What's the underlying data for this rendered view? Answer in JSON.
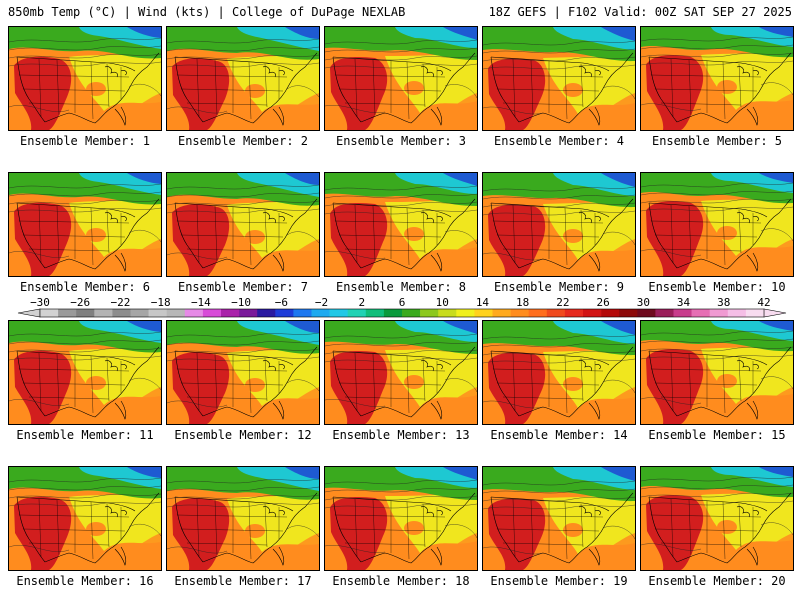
{
  "header": {
    "title": "850mb Temp (°C) | Wind (kts) | College of DuPage NEXLAB",
    "run_info": "18Z GEFS | F102 Valid: 00Z SAT SEP 27 2025"
  },
  "panel_label_prefix": "Ensemble Member: ",
  "members": [
    {
      "id": 1,
      "label": "Ensemble Member: 1"
    },
    {
      "id": 2,
      "label": "Ensemble Member: 2"
    },
    {
      "id": 3,
      "label": "Ensemble Member: 3"
    },
    {
      "id": 4,
      "label": "Ensemble Member: 4"
    },
    {
      "id": 5,
      "label": "Ensemble Member: 5"
    },
    {
      "id": 6,
      "label": "Ensemble Member: 6"
    },
    {
      "id": 7,
      "label": "Ensemble Member: 7"
    },
    {
      "id": 8,
      "label": "Ensemble Member: 8"
    },
    {
      "id": 9,
      "label": "Ensemble Member: 9"
    },
    {
      "id": 10,
      "label": "Ensemble Member: 10"
    },
    {
      "id": 11,
      "label": "Ensemble Member: 11"
    },
    {
      "id": 12,
      "label": "Ensemble Member: 12"
    },
    {
      "id": 13,
      "label": "Ensemble Member: 13"
    },
    {
      "id": 14,
      "label": "Ensemble Member: 14"
    },
    {
      "id": 15,
      "label": "Ensemble Member: 15"
    },
    {
      "id": 16,
      "label": "Ensemble Member: 16"
    },
    {
      "id": 17,
      "label": "Ensemble Member: 17"
    },
    {
      "id": 18,
      "label": "Ensemble Member: 18"
    },
    {
      "id": 19,
      "label": "Ensemble Member: 19"
    },
    {
      "id": 20,
      "label": "Ensemble Member: 20"
    }
  ],
  "colorbar": {
    "unit": "°C",
    "tick_labels": [
      "-30",
      "-26",
      "-22",
      "-18",
      "-14",
      "-10",
      "-6",
      "-2",
      "2",
      "6",
      "10",
      "14",
      "18",
      "22",
      "26",
      "30",
      "34",
      "38",
      "42"
    ],
    "colors": [
      "#d2d2d2",
      "#9a9a9a",
      "#808080",
      "#b3b3b3",
      "#8c8c8c",
      "#a6a6a6",
      "#c7c7c7",
      "#b7b7b7",
      "#e68ae6",
      "#d84cd8",
      "#aa22aa",
      "#7a1a9a",
      "#2a1aa0",
      "#1e3cd8",
      "#1e78f0",
      "#1eaaf0",
      "#20c8e6",
      "#20d2b4",
      "#10be7a",
      "#0a9a3c",
      "#3aaa1e",
      "#8cc81e",
      "#c8dc1e",
      "#f0f01e",
      "#ffd21e",
      "#ffaa1e",
      "#ff8c1e",
      "#ff6e1e",
      "#f04a1e",
      "#e62a1e",
      "#d21414",
      "#b40a0a",
      "#8c0a0a",
      "#6e0a1e",
      "#9a1e5a",
      "#c83c8c",
      "#e66eb4",
      "#f09ad2",
      "#f5bee6",
      "#f8dcf0"
    ]
  },
  "colors": {
    "hot_core": "#d21e1e",
    "warm": "#ff8c1e",
    "mild": "#f0e61e",
    "cool": "#3aaa1e",
    "cold": "#1ec8d2",
    "very_cold": "#1e5ad2"
  }
}
